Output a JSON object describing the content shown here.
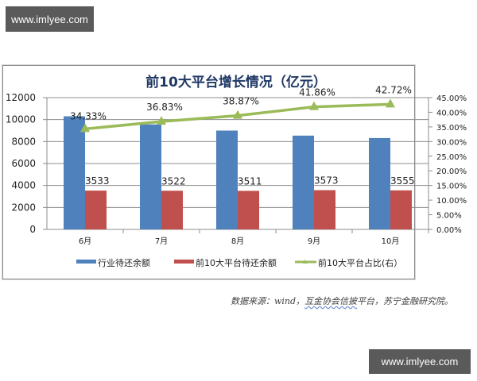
{
  "watermark": {
    "top": "www.imlyee.com",
    "bottom": "www.imlyee.com"
  },
  "source": {
    "prefix": "数据来源：wind，",
    "underlined": "互金协会信披",
    "suffix": "平台，苏宁金融研究院。"
  },
  "chart_data": {
    "type": "bar",
    "title": "前10大平台增长情况（亿元）",
    "categories": [
      "6月",
      "7月",
      "8月",
      "9月",
      "10月"
    ],
    "series": [
      {
        "name": "行业待还余额",
        "type": "bar",
        "axis": "left",
        "color": "#4f81bd",
        "values": [
          10300,
          9560,
          9000,
          8540,
          8320
        ]
      },
      {
        "name": "前10大平台待还余额",
        "type": "bar",
        "axis": "left",
        "color": "#c0504d",
        "values": [
          3533,
          3522,
          3511,
          3573,
          3555
        ],
        "labels": [
          "3533",
          "3522",
          "3511",
          "3573",
          "3555"
        ]
      },
      {
        "name": "前10大平台占比(右）",
        "type": "line",
        "axis": "right",
        "color": "#9bbb59",
        "values": [
          34.33,
          36.83,
          38.87,
          41.86,
          42.72
        ],
        "labels": [
          "34.33%",
          "36.83%",
          "38.87%",
          "41.86%",
          "42.72%"
        ]
      }
    ],
    "left_axis": {
      "min": 0,
      "max": 12000,
      "ticks": [
        "0",
        "2000",
        "4000",
        "6000",
        "8000",
        "10000",
        "12000"
      ]
    },
    "right_axis": {
      "min": 0,
      "max": 45,
      "ticks": [
        "0.00%",
        "5.00%",
        "10.00%",
        "15.00%",
        "20.00%",
        "25.00%",
        "30.00%",
        "35.00%",
        "40.00%",
        "45.00%"
      ]
    },
    "xlabel": "",
    "ylabel": "",
    "grid": true,
    "legend_position": "bottom"
  }
}
